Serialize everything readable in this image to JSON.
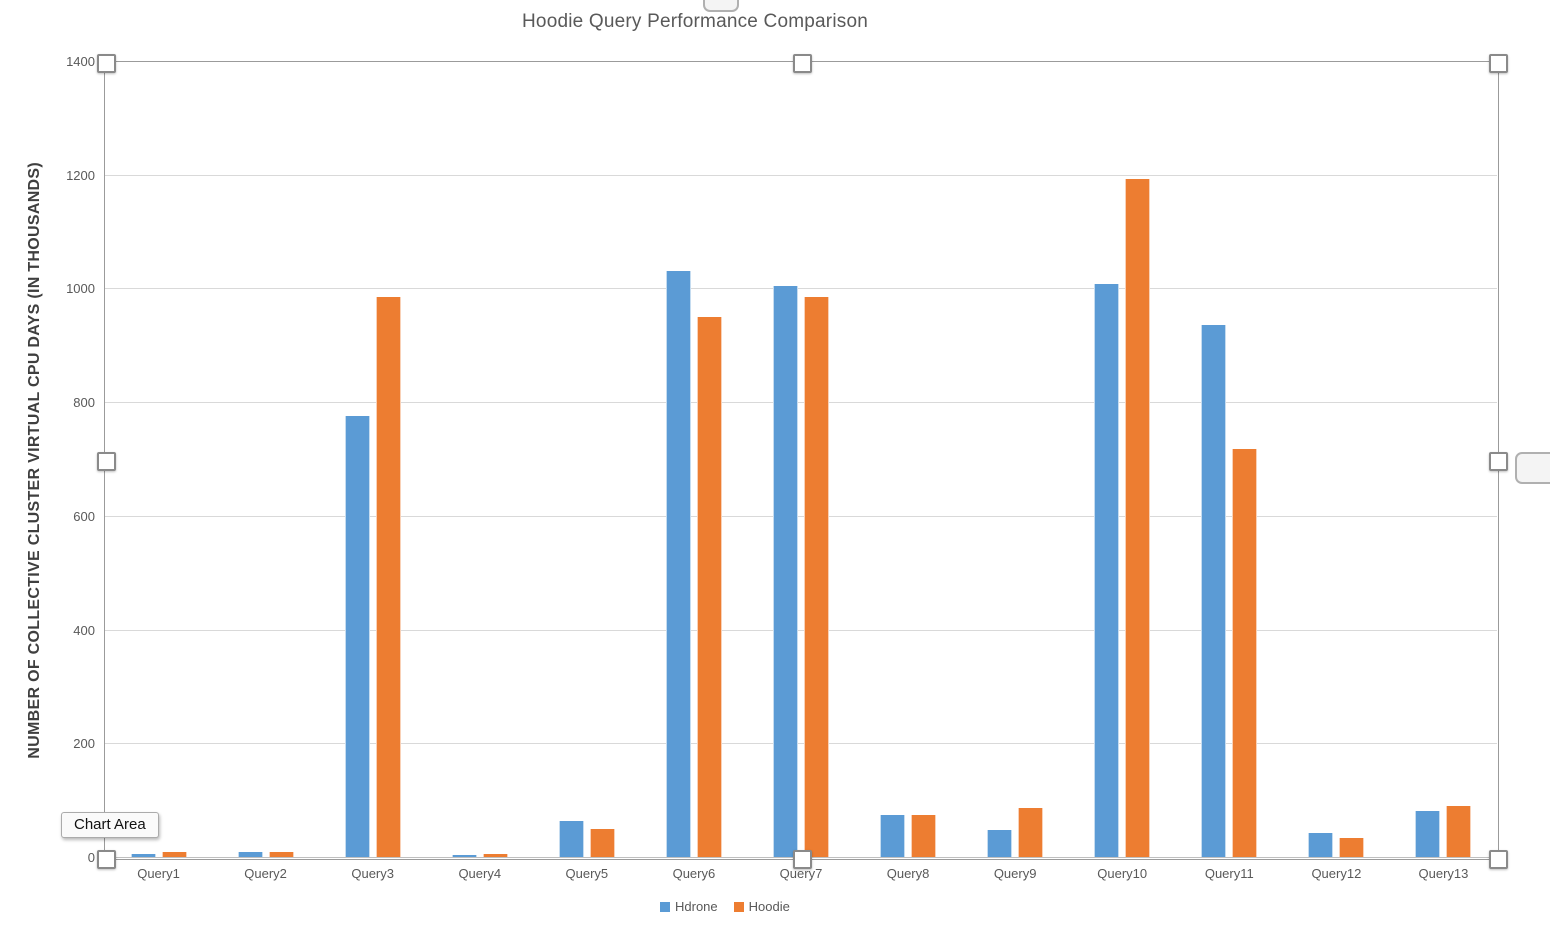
{
  "chart_data": {
    "type": "bar",
    "title": "Hoodie Query Performance Comparison",
    "xlabel": "",
    "ylabel": "NUMBER OF COLLECTIVE CLUSTER VIRTUAL CPU DAYS (IN THOUSANDS)",
    "categories": [
      "Query1",
      "Query2",
      "Query3",
      "Query4",
      "Query5",
      "Query6",
      "Query7",
      "Query8",
      "Query9",
      "Query10",
      "Query11",
      "Query12",
      "Query13"
    ],
    "series": [
      {
        "name": "Hdrone",
        "color": "#5B9BD5",
        "values": [
          5,
          9,
          775,
          4,
          63,
          1030,
          1005,
          74,
          48,
          1008,
          935,
          42,
          81
        ]
      },
      {
        "name": "Hoodie",
        "color": "#ED7D31",
        "values": [
          8,
          8,
          985,
          5,
          50,
          950,
          985,
          74,
          86,
          1192,
          718,
          33,
          89
        ]
      }
    ],
    "ylim": [
      0,
      1400
    ],
    "ytick_step": 200,
    "yticks": [
      0,
      200,
      400,
      600,
      800,
      1000,
      1200,
      1400
    ],
    "grid": true,
    "legend_position": "bottom"
  },
  "selection": {
    "tooltip": "Chart Area"
  },
  "colors": {
    "gridline": "#d9d9d9",
    "axis_line": "#bfbfbf",
    "tick_label": "#595959",
    "title": "#595959",
    "selection_border": "#9b9b9b",
    "handle_fill": "#ffffff",
    "handle_border": "#8a8a8a"
  }
}
